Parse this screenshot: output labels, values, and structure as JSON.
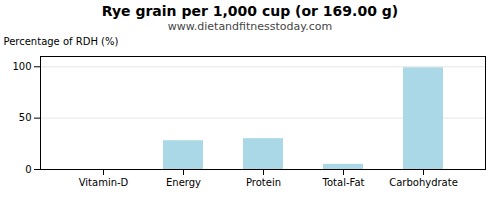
{
  "chart_data": {
    "type": "bar",
    "title": "Rye grain per 1,000 cup (or 169.00 g)",
    "subtitle": "www.dietandfitnesstoday.com",
    "categories": [
      "Vitamin-D",
      "Energy",
      "Protein",
      "Total-Fat",
      "Carbohydrate"
    ],
    "values": [
      0,
      28,
      30,
      5,
      99
    ],
    "color": "#aad8e6",
    "ylabel": "Percentage of RDH (%)",
    "ylim": [
      0,
      110
    ],
    "yticks": [
      0,
      50,
      100
    ],
    "grid": true
  }
}
